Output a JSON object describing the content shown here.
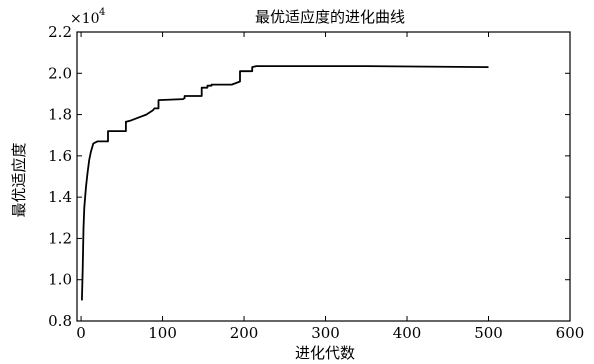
{
  "chart_data": {
    "type": "line",
    "title": "最优适应度的进化曲线",
    "xlabel": "进化代数",
    "ylabel": "最优适应度",
    "y_multiplier": "×10^4",
    "xlim": [
      -5,
      600
    ],
    "ylim": [
      0.8,
      2.2
    ],
    "x_ticks": [
      0,
      100,
      200,
      300,
      400,
      500,
      600
    ],
    "y_ticks": [
      0.8,
      1.0,
      1.2,
      1.4,
      1.6,
      1.8,
      2.0,
      2.2
    ],
    "x_tick_labels": [
      "0",
      "100",
      "200",
      "300",
      "400",
      "500",
      "600"
    ],
    "y_tick_labels": [
      "0.8",
      "1.0",
      "1.2",
      "1.4",
      "1.6",
      "1.8",
      "2.0",
      "2.2"
    ],
    "grid": false,
    "series": [
      {
        "color": "#000000",
        "x": [
          1,
          2,
          3,
          4,
          6,
          8,
          10,
          12,
          15,
          20,
          20,
          33,
          33,
          50,
          55,
          55,
          60,
          70,
          80,
          88,
          90,
          95,
          95,
          125,
          127,
          127,
          148,
          148,
          155,
          155,
          160,
          160,
          185,
          195,
          195,
          210,
          210,
          215,
          350,
          500
        ],
        "y": [
          0.9,
          1.05,
          1.25,
          1.35,
          1.45,
          1.52,
          1.58,
          1.62,
          1.66,
          1.67,
          1.67,
          1.67,
          1.72,
          1.72,
          1.72,
          1.765,
          1.77,
          1.785,
          1.8,
          1.82,
          1.83,
          1.83,
          1.87,
          1.875,
          1.88,
          1.89,
          1.89,
          1.93,
          1.93,
          1.94,
          1.94,
          1.945,
          1.945,
          1.96,
          2.01,
          2.01,
          2.03,
          2.035,
          2.035,
          2.03
        ]
      }
    ]
  }
}
